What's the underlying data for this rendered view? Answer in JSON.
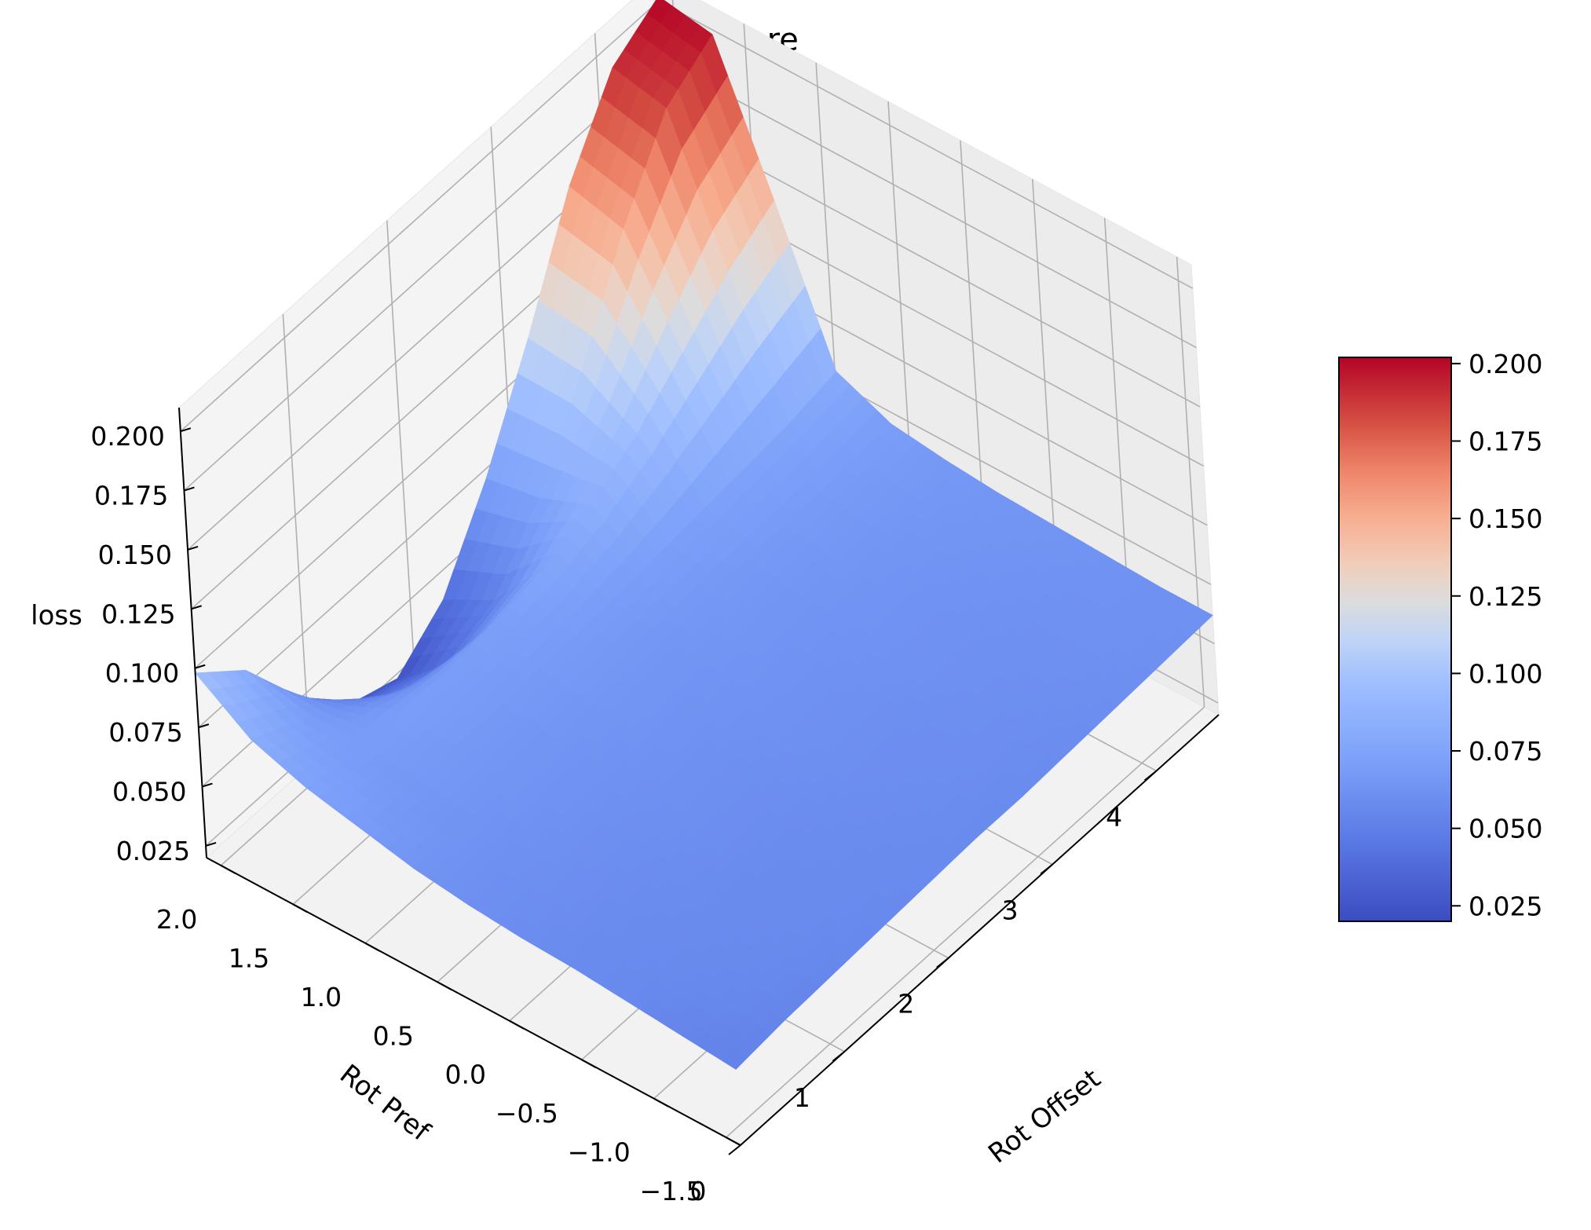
{
  "chart_data": {
    "type": "surface3d",
    "title": "rot_loss_care",
    "xlabel": "Rot Offset",
    "ylabel": "Rot Pref",
    "zlabel": "loss",
    "colormap": "coolwarm",
    "x_ticks": [
      "0",
      "1",
      "2",
      "3",
      "4"
    ],
    "y_ticks": [
      "−1.5",
      "−1.0",
      "−0.5",
      "0.0",
      "0.5",
      "1.0",
      "1.5",
      "2.0"
    ],
    "z_ticks": [
      "0.025",
      "0.050",
      "0.075",
      "0.100",
      "0.125",
      "0.150",
      "0.175",
      "0.200"
    ],
    "colorbar_ticks": [
      "0.025",
      "0.050",
      "0.075",
      "0.100",
      "0.125",
      "0.150",
      "0.175",
      "0.200"
    ],
    "xlim": [
      0,
      4.6
    ],
    "ylim": [
      -1.6,
      2.1
    ],
    "zlim": [
      0.02,
      0.21
    ],
    "clim": [
      0.02,
      0.202
    ],
    "view": {
      "elev": 30,
      "azim": -135
    },
    "grid": true,
    "colorbar_position": "right",
    "surface": {
      "x": [
        0.0,
        0.46,
        0.92,
        1.38,
        1.84,
        2.3,
        2.76,
        3.22,
        3.68,
        4.14,
        4.6
      ],
      "y": [
        -1.6,
        -1.23,
        -0.86,
        -0.49,
        -0.12,
        0.25,
        0.62,
        0.99,
        1.36,
        1.73,
        2.1
      ],
      "z": [
        [
          0.052,
          0.054,
          0.055,
          0.056,
          0.057,
          0.058,
          0.058,
          0.059,
          0.06,
          0.061,
          0.062
        ],
        [
          0.054,
          0.056,
          0.057,
          0.058,
          0.058,
          0.059,
          0.06,
          0.06,
          0.061,
          0.062,
          0.062
        ],
        [
          0.056,
          0.057,
          0.058,
          0.058,
          0.059,
          0.06,
          0.06,
          0.061,
          0.061,
          0.062,
          0.063
        ],
        [
          0.058,
          0.058,
          0.059,
          0.06,
          0.06,
          0.061,
          0.061,
          0.062,
          0.062,
          0.063,
          0.064
        ],
        [
          0.059,
          0.06,
          0.06,
          0.061,
          0.061,
          0.062,
          0.062,
          0.063,
          0.063,
          0.064,
          0.065
        ],
        [
          0.061,
          0.061,
          0.062,
          0.062,
          0.063,
          0.063,
          0.064,
          0.064,
          0.065,
          0.066,
          0.067
        ],
        [
          0.064,
          0.063,
          0.064,
          0.064,
          0.065,
          0.065,
          0.066,
          0.067,
          0.068,
          0.069,
          0.07
        ],
        [
          0.069,
          0.066,
          0.067,
          0.067,
          0.068,
          0.069,
          0.07,
          0.072,
          0.074,
          0.076,
          0.08
        ],
        [
          0.074,
          0.069,
          0.07,
          0.07,
          0.072,
          0.076,
          0.084,
          0.096,
          0.112,
          0.128,
          0.14
        ],
        [
          0.082,
          0.072,
          0.06,
          0.048,
          0.042,
          0.05,
          0.075,
          0.11,
          0.152,
          0.185,
          0.198
        ],
        [
          0.098,
          0.081,
          0.052,
          0.03,
          0.023,
          0.038,
          0.071,
          0.112,
          0.158,
          0.19,
          0.202
        ]
      ]
    }
  }
}
